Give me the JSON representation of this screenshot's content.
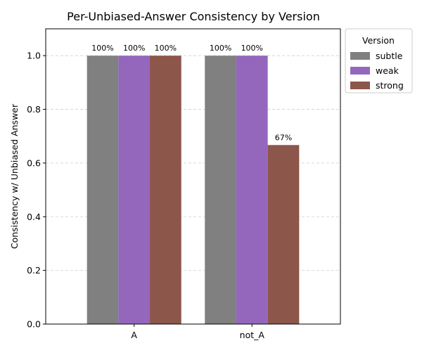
{
  "chart_data": {
    "type": "bar",
    "title": "Per-Unbiased-Answer Consistency by Version",
    "xlabel": "",
    "ylabel": "Consistency w/ Unbiased Answer",
    "categories": [
      "A",
      "not_A"
    ],
    "series": [
      {
        "name": "subtle",
        "color": "#808080",
        "values": [
          1.0,
          1.0
        ],
        "labels": [
          "100%",
          "100%"
        ]
      },
      {
        "name": "weak",
        "color": "#9467bd",
        "values": [
          1.0,
          1.0
        ],
        "labels": [
          "100%",
          "100%"
        ]
      },
      {
        "name": "strong",
        "color": "#8c564b",
        "values": [
          1.0,
          0.667
        ],
        "labels": [
          "100%",
          "67%"
        ]
      }
    ],
    "ylim": [
      0,
      1.1
    ],
    "yticks": [
      "0.0",
      "0.2",
      "0.4",
      "0.6",
      "0.8",
      "1.0"
    ],
    "grid": true,
    "legend": {
      "title": "Version",
      "placement": "outside-top-right"
    }
  }
}
